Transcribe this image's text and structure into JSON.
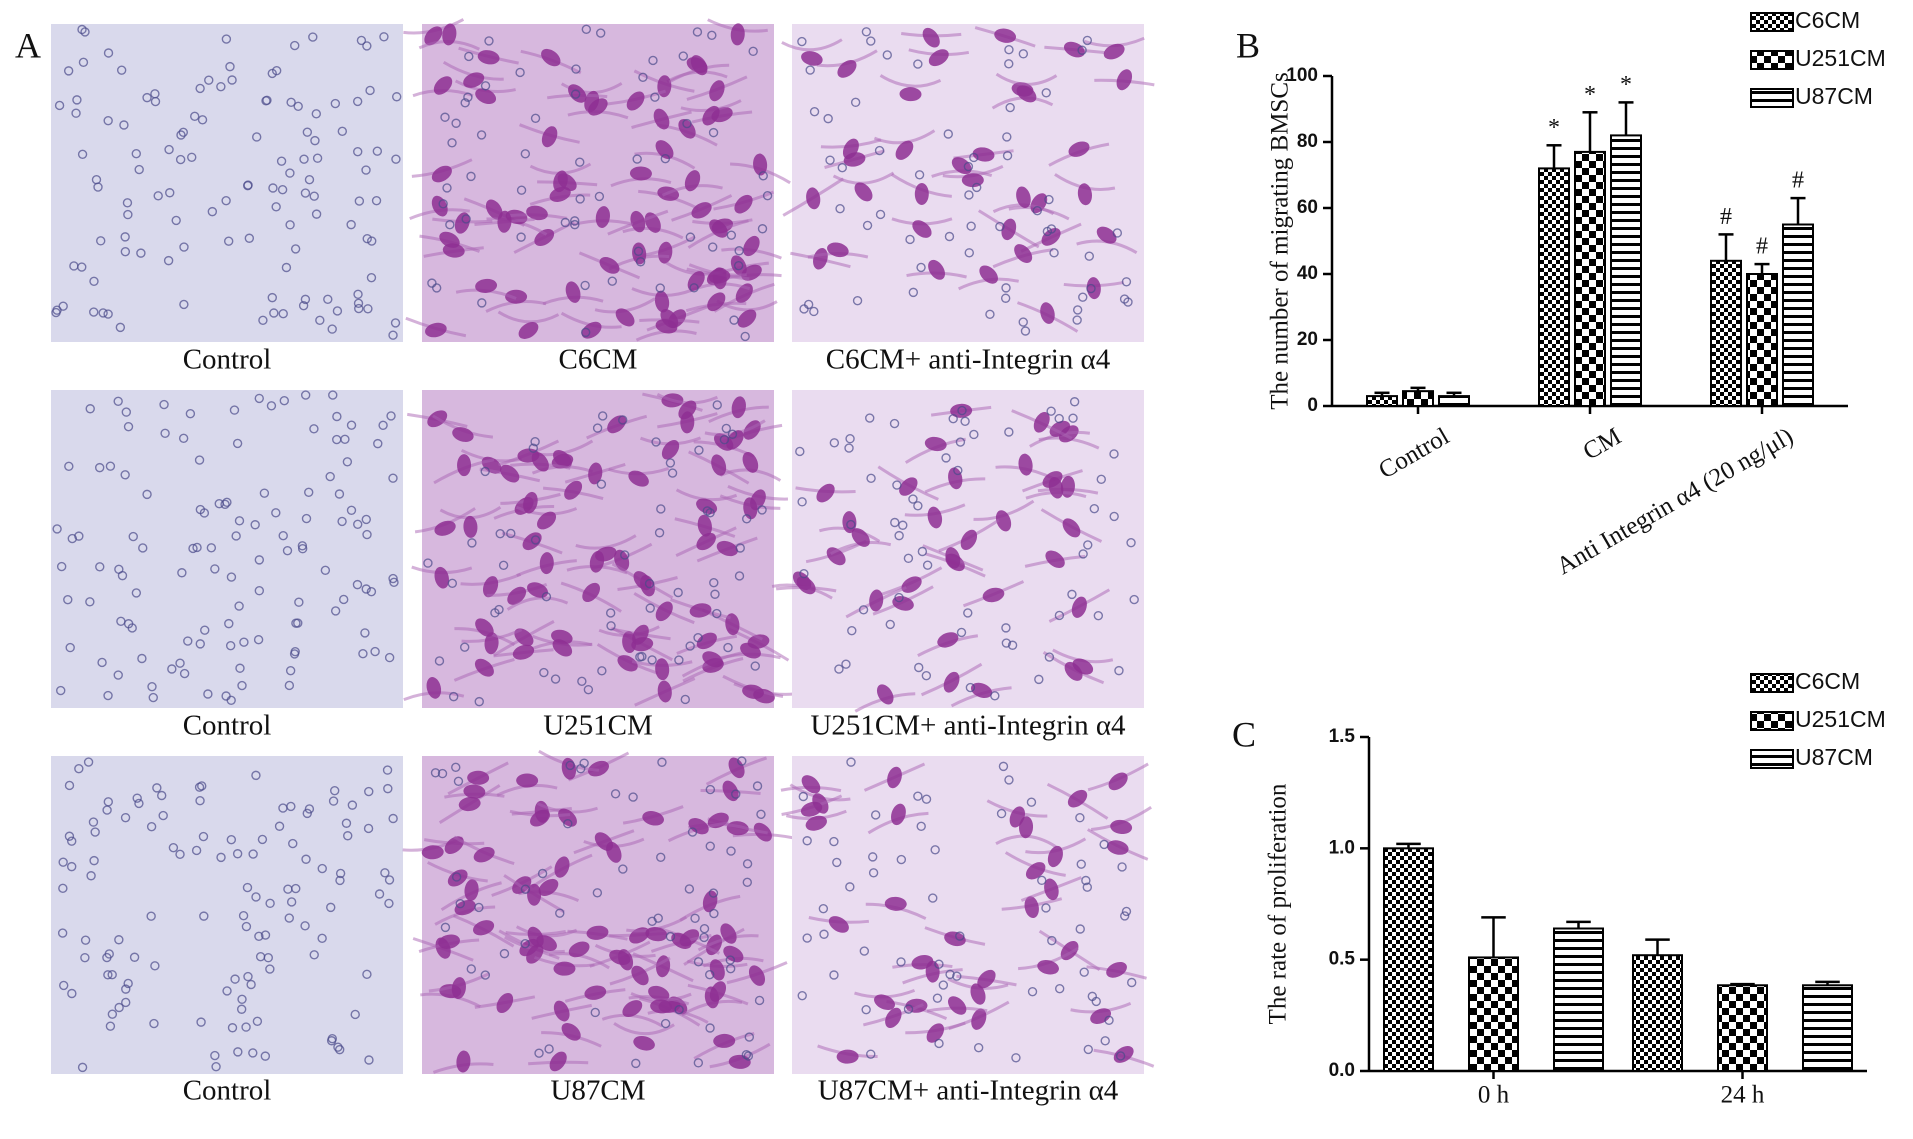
{
  "panel_labels": [
    "A",
    "B",
    "C"
  ],
  "micrographs": {
    "captions": [
      "Control",
      "C6CM",
      "C6CM+ anti-Integrin α4",
      "Control",
      "U251CM",
      "U251CM+ anti-Integrin α4",
      "Control",
      "U87CM",
      "U87CM+ anti-Integrin α4"
    ]
  },
  "chart_data": [
    {
      "type": "bar",
      "y_label": "The number of migrating BMSCs",
      "categories": [
        "Control",
        "CM",
        "Anti Integrin α4  (20 ng/μl)"
      ],
      "series": [
        {
          "name": "C6CM",
          "color": "#000000",
          "pattern": "checker-fine",
          "values": [
            3,
            72,
            44
          ],
          "errors": [
            1,
            7,
            8
          ],
          "markers": [
            null,
            "*",
            "#"
          ]
        },
        {
          "name": "U251CM",
          "color": "#000000",
          "pattern": "checker-coarse",
          "values": [
            4.5,
            77,
            40
          ],
          "errors": [
            1,
            12,
            3
          ],
          "markers": [
            null,
            "*",
            "#"
          ]
        },
        {
          "name": "U87CM",
          "color": "#000000",
          "pattern": "stripes",
          "values": [
            3,
            82,
            55
          ],
          "errors": [
            1,
            10,
            8
          ],
          "markers": [
            null,
            "*",
            "#"
          ]
        }
      ],
      "ylim": [
        0,
        100
      ],
      "yticks": [
        0,
        20,
        40,
        60,
        80,
        100
      ],
      "grid": false,
      "legend": "top-right"
    },
    {
      "type": "bar",
      "y_label": "The rate of proliferation",
      "categories": [
        "0 h",
        "24 h"
      ],
      "series": [
        {
          "name": "C6CM",
          "color": "#000000",
          "pattern": "checker-fine",
          "values": [
            1.0,
            0.52
          ],
          "errors": [
            0.02,
            0.07
          ]
        },
        {
          "name": "U251CM",
          "color": "#000000",
          "pattern": "checker-coarse",
          "values": [
            0.51,
            0.385
          ],
          "errors": [
            0.18,
            0.005
          ]
        },
        {
          "name": "U87CM",
          "color": "#000000",
          "pattern": "stripes",
          "values": [
            0.64,
            0.385
          ],
          "errors": [
            0.03,
            0.015
          ]
        }
      ],
      "ylim": [
        0,
        1.5
      ],
      "yticks": [
        {
          "value": 0,
          "label": "0.0"
        },
        {
          "value": 0.5,
          "label": "0.5"
        },
        {
          "value": 1,
          "label": "1.0"
        },
        {
          "value": 1.5,
          "label": "1.5"
        }
      ],
      "grid": false,
      "legend": "top-right"
    }
  ]
}
